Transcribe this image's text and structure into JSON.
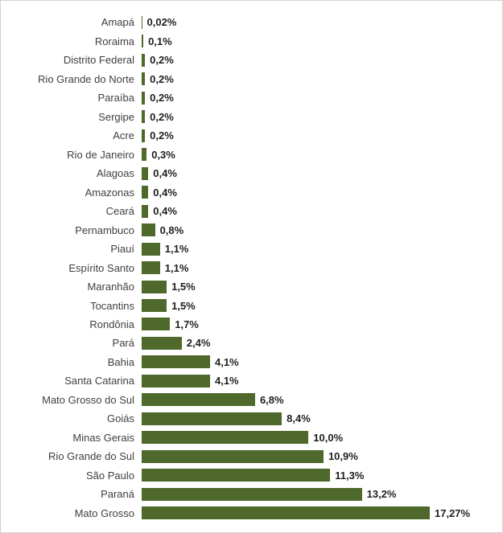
{
  "chart_data": {
    "type": "bar",
    "orientation": "horizontal",
    "title": "",
    "xlabel": "",
    "ylabel": "",
    "grid": false,
    "legend": false,
    "bar_color": "#4F682B",
    "xlim": [
      0,
      18
    ],
    "categories": [
      "Amapá",
      "Roraima",
      "Distrito Federal",
      "Rio Grande do Norte",
      "Paraíba",
      "Sergipe",
      "Acre",
      "Rio de Janeiro",
      "Alagoas",
      "Amazonas",
      "Ceará",
      "Pernambuco",
      "Piauí",
      "Espírito Santo",
      "Maranhão",
      "Tocantins",
      "Rondônia",
      "Pará",
      "Bahia",
      "Santa Catarina",
      "Mato Grosso do Sul",
      "Goiás",
      "Minas Gerais",
      "Rio Grande do Sul",
      "São Paulo",
      "Paraná",
      "Mato Grosso"
    ],
    "values": [
      0.02,
      0.1,
      0.2,
      0.2,
      0.2,
      0.2,
      0.2,
      0.3,
      0.4,
      0.4,
      0.4,
      0.8,
      1.1,
      1.1,
      1.5,
      1.5,
      1.7,
      2.4,
      4.1,
      4.1,
      6.8,
      8.4,
      10.0,
      10.9,
      11.3,
      13.2,
      17.27
    ],
    "value_labels": [
      "0,02%",
      "0,1%",
      "0,2%",
      "0,2%",
      "0,2%",
      "0,2%",
      "0,2%",
      "0,3%",
      "0,4%",
      "0,4%",
      "0,4%",
      "0,8%",
      "1,1%",
      "1,1%",
      "1,5%",
      "1,5%",
      "1,7%",
      "2,4%",
      "4,1%",
      "4,1%",
      "6,8%",
      "8,4%",
      "10,0%",
      "10,9%",
      "11,3%",
      "13,2%",
      "17,27%"
    ]
  }
}
